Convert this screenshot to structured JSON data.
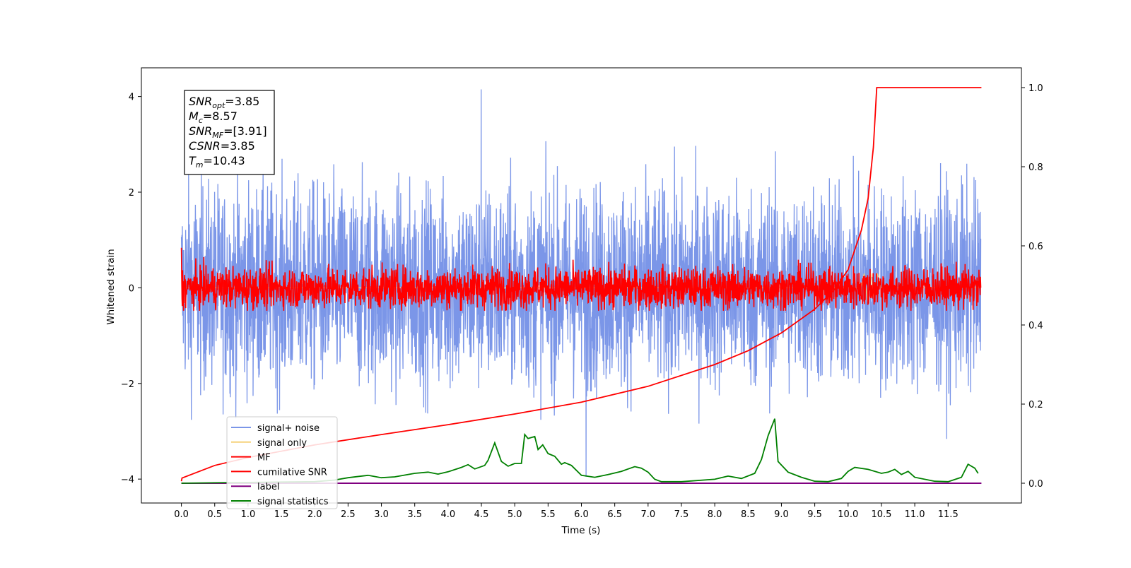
{
  "chart_data": {
    "type": "line",
    "xlabel": "Time (s)",
    "ylabel": "Whitened strain",
    "xlim": [
      -0.6,
      12.6
    ],
    "ylim": [
      -4.5,
      4.6
    ],
    "y2lim": [
      -0.05,
      1.05
    ],
    "x_tick_labels": [
      "0.0",
      "0.5",
      "1.0",
      "1.5",
      "2.0",
      "2.5",
      "3.0",
      "3.5",
      "4.0",
      "4.5",
      "5.0",
      "5.5",
      "6.0",
      "6.5",
      "7.0",
      "7.5",
      "8.0",
      "8.5",
      "9.0",
      "9.5",
      "10.0",
      "10.5",
      "11.0",
      "11.5"
    ],
    "y_tick_labels": [
      "−4",
      "−2",
      "0",
      "2",
      "4"
    ],
    "y2_tick_labels": [
      "0.0",
      "0.2",
      "0.4",
      "0.6",
      "0.8",
      "1.0"
    ],
    "info_box": {
      "lines": [
        {
          "sym": "SNR",
          "sub": "opt",
          "val": "=3.85"
        },
        {
          "sym": "M",
          "sub": "c",
          "val": "=8.57"
        },
        {
          "sym": "SNR",
          "sub": "MF",
          "val": "=[3.91]"
        },
        {
          "sym": "CSNR",
          "sub": "",
          "val": "=3.85"
        },
        {
          "sym": "T",
          "sub": "m",
          "val": "=10.43"
        }
      ]
    },
    "legend": {
      "placement": "lower-left",
      "entries": [
        {
          "label": "signal+ noise",
          "color": "#7b96e8"
        },
        {
          "label": "signal only",
          "color": "#f6d27a"
        },
        {
          "label": "MF",
          "color": "#ff0000"
        },
        {
          "label": "cumilative SNR",
          "color": "#ff0000"
        },
        {
          "label": "label",
          "color": "#800080"
        },
        {
          "label": "signal statistics",
          "color": "#008000"
        }
      ]
    },
    "series": [
      {
        "name": "signal+ noise",
        "color": "#7b96e8",
        "axis": "left",
        "x_range": [
          0,
          11.99
        ],
        "center": 0,
        "typical_range": [
          -2.4,
          2.4
        ],
        "extremes": {
          "max": 4.15,
          "min": -3.95
        }
      },
      {
        "name": "signal only",
        "color": "#f6d27a",
        "axis": "left",
        "x_range": [
          0,
          11.99
        ],
        "center": 0,
        "peak_region": [
          10.2,
          10.45
        ],
        "amplitude": 0.5
      },
      {
        "name": "MF",
        "color": "#ff0000",
        "axis": "left",
        "x_range": [
          0,
          11.99
        ],
        "center": 0,
        "typical_range": [
          -0.45,
          0.45
        ],
        "extremes": {
          "max": 0.95,
          "min": -0.5
        }
      },
      {
        "name": "cumilative SNR",
        "color": "#ff0000",
        "axis": "right",
        "points": [
          [
            0.0,
            0.005
          ],
          [
            0.01,
            0.013
          ],
          [
            0.5,
            0.045
          ],
          [
            1.0,
            0.065
          ],
          [
            2.0,
            0.097
          ],
          [
            3.0,
            0.123
          ],
          [
            4.0,
            0.148
          ],
          [
            5.0,
            0.175
          ],
          [
            6.0,
            0.205
          ],
          [
            7.0,
            0.245
          ],
          [
            8.0,
            0.3
          ],
          [
            8.5,
            0.335
          ],
          [
            9.0,
            0.38
          ],
          [
            9.5,
            0.44
          ],
          [
            9.8,
            0.49
          ],
          [
            10.0,
            0.54
          ],
          [
            10.2,
            0.64
          ],
          [
            10.3,
            0.72
          ],
          [
            10.38,
            0.85
          ],
          [
            10.43,
            1.0
          ],
          [
            12.0,
            1.0
          ]
        ]
      },
      {
        "name": "label",
        "color": "#800080",
        "axis": "right",
        "points": [
          [
            0.0,
            0.0
          ],
          [
            12.0,
            0.0
          ]
        ]
      },
      {
        "name": "signal statistics",
        "color": "#008000",
        "axis": "right",
        "points": [
          [
            0.0,
            0.0
          ],
          [
            0.5,
            0.001
          ],
          [
            1.0,
            0.002
          ],
          [
            1.5,
            0.003
          ],
          [
            2.0,
            0.004
          ],
          [
            2.3,
            0.008
          ],
          [
            2.5,
            0.014
          ],
          [
            2.8,
            0.02
          ],
          [
            3.0,
            0.014
          ],
          [
            3.2,
            0.016
          ],
          [
            3.5,
            0.025
          ],
          [
            3.7,
            0.028
          ],
          [
            3.85,
            0.023
          ],
          [
            4.0,
            0.029
          ],
          [
            4.2,
            0.04
          ],
          [
            4.3,
            0.047
          ],
          [
            4.4,
            0.036
          ],
          [
            4.55,
            0.045
          ],
          [
            4.6,
            0.058
          ],
          [
            4.7,
            0.102
          ],
          [
            4.8,
            0.055
          ],
          [
            4.9,
            0.043
          ],
          [
            5.0,
            0.05
          ],
          [
            5.1,
            0.05
          ],
          [
            5.15,
            0.123
          ],
          [
            5.2,
            0.113
          ],
          [
            5.3,
            0.118
          ],
          [
            5.35,
            0.085
          ],
          [
            5.42,
            0.097
          ],
          [
            5.5,
            0.075
          ],
          [
            5.6,
            0.068
          ],
          [
            5.7,
            0.048
          ],
          [
            5.75,
            0.052
          ],
          [
            5.85,
            0.045
          ],
          [
            6.0,
            0.02
          ],
          [
            6.2,
            0.015
          ],
          [
            6.4,
            0.022
          ],
          [
            6.6,
            0.03
          ],
          [
            6.8,
            0.042
          ],
          [
            6.9,
            0.038
          ],
          [
            7.0,
            0.028
          ],
          [
            7.1,
            0.01
          ],
          [
            7.2,
            0.004
          ],
          [
            7.5,
            0.004
          ],
          [
            8.0,
            0.01
          ],
          [
            8.2,
            0.018
          ],
          [
            8.4,
            0.012
          ],
          [
            8.6,
            0.025
          ],
          [
            8.7,
            0.06
          ],
          [
            8.8,
            0.12
          ],
          [
            8.9,
            0.163
          ],
          [
            8.95,
            0.055
          ],
          [
            9.1,
            0.028
          ],
          [
            9.3,
            0.015
          ],
          [
            9.5,
            0.005
          ],
          [
            9.7,
            0.004
          ],
          [
            9.9,
            0.012
          ],
          [
            10.0,
            0.03
          ],
          [
            10.1,
            0.04
          ],
          [
            10.3,
            0.035
          ],
          [
            10.5,
            0.025
          ],
          [
            10.6,
            0.028
          ],
          [
            10.7,
            0.035
          ],
          [
            10.8,
            0.022
          ],
          [
            10.9,
            0.03
          ],
          [
            11.0,
            0.015
          ],
          [
            11.3,
            0.005
          ],
          [
            11.5,
            0.004
          ],
          [
            11.7,
            0.015
          ],
          [
            11.8,
            0.048
          ],
          [
            11.9,
            0.038
          ],
          [
            11.95,
            0.025
          ]
        ]
      }
    ]
  }
}
